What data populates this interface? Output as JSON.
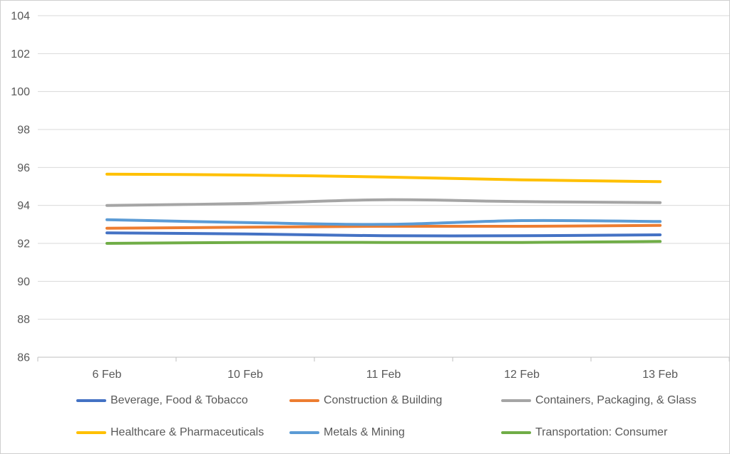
{
  "chart_data": {
    "type": "line",
    "title": "",
    "xlabel": "",
    "ylabel": "",
    "x_categories": [
      "6 Feb",
      "10 Feb",
      "11 Feb",
      "12 Feb",
      "13 Feb"
    ],
    "y_ticks": [
      86,
      88,
      90,
      92,
      94,
      96,
      98,
      100,
      102,
      104
    ],
    "ylim": [
      86,
      104
    ],
    "grid": "horizontal",
    "legend_position": "bottom",
    "smooth_lines": true,
    "series": [
      {
        "name": "Beverage, Food & Tobacco",
        "color": "#4472C4",
        "values": [
          92.55,
          92.5,
          92.4,
          92.4,
          92.45
        ]
      },
      {
        "name": "Construction & Building",
        "color": "#ED7D31",
        "values": [
          92.8,
          92.85,
          92.9,
          92.9,
          92.95
        ]
      },
      {
        "name": "Containers, Packaging, & Glass",
        "color": "#A5A5A5",
        "values": [
          94.0,
          94.1,
          94.3,
          94.2,
          94.15
        ]
      },
      {
        "name": "Healthcare & Pharmaceuticals",
        "color": "#FFC000",
        "values": [
          95.65,
          95.6,
          95.5,
          95.35,
          95.25
        ]
      },
      {
        "name": "Metals & Mining",
        "color": "#5B9BD5",
        "values": [
          93.25,
          93.1,
          93.0,
          93.2,
          93.15
        ]
      },
      {
        "name": "Transportation: Consumer",
        "color": "#70AD47",
        "values": [
          92.0,
          92.05,
          92.05,
          92.05,
          92.1
        ]
      }
    ],
    "colors": {
      "grid": "#D9D9D9",
      "axis": "#BFBFBF",
      "text": "#595959",
      "background": "#FFFFFF",
      "border": "#CFCFCF"
    }
  }
}
